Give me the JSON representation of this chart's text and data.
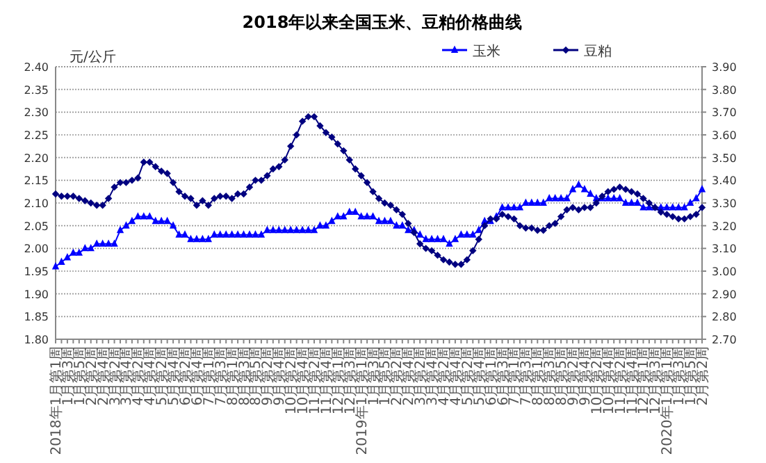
{
  "chart_data": {
    "type": "line",
    "title": "2018年以来全国玉米、豆粕价格曲线",
    "ylabel": "元/公斤",
    "categories": [
      "2018年1月第1周",
      null,
      "1月第3周",
      null,
      "1月第5周",
      null,
      "2月第2周",
      null,
      "2月第4周",
      null,
      "3月第2周",
      null,
      "3月第4周",
      null,
      "4月第2周",
      null,
      "4月第4周",
      null,
      "5月第2周",
      null,
      "5月第4周",
      null,
      "6月第2周",
      null,
      "6月第4周",
      null,
      "7月第1周",
      null,
      "7月第3周",
      null,
      "8月第1周",
      null,
      "8月第3周",
      null,
      "8月第5周",
      null,
      "9月第2周",
      null,
      "9月第4周",
      null,
      "10月第2周",
      null,
      "10月第4周",
      null,
      "11月第2周",
      null,
      "11月第4周",
      null,
      "12月第1周",
      null,
      "12月第3周",
      null,
      "2019年1月第1周",
      null,
      "1月第3周",
      null,
      "1月第5周",
      null,
      "2月第2周",
      null,
      "2月第4周",
      null,
      "3月第2周",
      null,
      "3月第4周",
      null,
      "4月第2周",
      null,
      "4月第4周",
      null,
      "5月第2周",
      null,
      "5月第4周",
      null,
      "6月第1周",
      null,
      "6月第3周",
      null,
      "7月第1周",
      null,
      "7月第3周",
      null,
      "8月第1周",
      null,
      "8月第3周",
      null,
      "8月第5周",
      null,
      "9月第2周",
      null,
      "9月第4周",
      null,
      "10月第2周",
      null,
      "10月第4周",
      null,
      "11月第2周",
      null,
      "11月第4周",
      null,
      "12月第1周",
      null,
      "12月第3周",
      null,
      "2020年1月第1周",
      null,
      "1月第3周",
      null,
      "1月第5周",
      null,
      "2月第2周"
    ],
    "series": [
      {
        "name": "玉米",
        "color": "#0000ff",
        "marker": "triangle",
        "values": [
          1.96,
          1.97,
          1.98,
          1.99,
          1.99,
          2.0,
          2.0,
          2.01,
          2.01,
          2.01,
          2.01,
          2.04,
          2.05,
          2.06,
          2.07,
          2.07,
          2.07,
          2.06,
          2.06,
          2.06,
          2.05,
          2.03,
          2.03,
          2.02,
          2.02,
          2.02,
          2.02,
          2.03,
          2.03,
          2.03,
          2.03,
          2.03,
          2.03,
          2.03,
          2.03,
          2.03,
          2.04,
          2.04,
          2.04,
          2.04,
          2.04,
          2.04,
          2.04,
          2.04,
          2.04,
          2.05,
          2.05,
          2.06,
          2.07,
          2.07,
          2.08,
          2.08,
          2.07,
          2.07,
          2.07,
          2.06,
          2.06,
          2.06,
          2.05,
          2.05,
          2.04,
          2.04,
          2.03,
          2.02,
          2.02,
          2.02,
          2.02,
          2.01,
          2.02,
          2.03,
          2.03,
          2.03,
          2.04,
          2.06,
          2.06,
          2.07,
          2.09,
          2.09,
          2.09,
          2.09,
          2.1,
          2.1,
          2.1,
          2.1,
          2.11,
          2.11,
          2.11,
          2.11,
          2.13,
          2.14,
          2.13,
          2.12,
          2.11,
          2.11,
          2.11,
          2.11,
          2.11,
          2.1,
          2.1,
          2.1,
          2.09,
          2.09,
          2.09,
          2.09,
          2.09,
          2.09,
          2.09,
          2.09,
          2.1,
          2.11,
          2.13
        ]
      },
      {
        "name": "豆粕",
        "color": "#000080",
        "marker": "diamond",
        "axis": "y2",
        "values": [
          3.34,
          3.33,
          3.33,
          3.33,
          3.32,
          3.31,
          3.3,
          3.29,
          3.29,
          3.32,
          3.37,
          3.39,
          3.39,
          3.4,
          3.41,
          3.48,
          3.48,
          3.46,
          3.44,
          3.43,
          3.39,
          3.35,
          3.33,
          3.32,
          3.29,
          3.31,
          3.29,
          3.32,
          3.33,
          3.33,
          3.32,
          3.34,
          3.34,
          3.37,
          3.4,
          3.4,
          3.42,
          3.45,
          3.46,
          3.49,
          3.55,
          3.6,
          3.66,
          3.68,
          3.68,
          3.64,
          3.61,
          3.59,
          3.56,
          3.53,
          3.49,
          3.45,
          3.42,
          3.39,
          3.35,
          3.32,
          3.3,
          3.29,
          3.27,
          3.25,
          3.21,
          3.17,
          3.12,
          3.1,
          3.09,
          3.07,
          3.05,
          3.04,
          3.03,
          3.03,
          3.05,
          3.09,
          3.14,
          3.2,
          3.23,
          3.23,
          3.25,
          3.24,
          3.23,
          3.2,
          3.19,
          3.19,
          3.18,
          3.18,
          3.2,
          3.21,
          3.24,
          3.27,
          3.28,
          3.27,
          3.28,
          3.28,
          3.3,
          3.33,
          3.35,
          3.36,
          3.37,
          3.36,
          3.35,
          3.34,
          3.32,
          3.3,
          3.28,
          3.26,
          3.25,
          3.24,
          3.23,
          3.23,
          3.24,
          3.25,
          3.28
        ]
      }
    ],
    "ylim": [
      1.8,
      2.4
    ],
    "yticks": [
      {
        "value": 1.8,
        "label": "1.80"
      },
      {
        "value": 1.85,
        "label": "1.85"
      },
      {
        "value": 1.9,
        "label": "1.90"
      },
      {
        "value": 1.95,
        "label": "1.95"
      },
      {
        "value": 2.0,
        "label": "2.00"
      },
      {
        "value": 2.05,
        "label": "2.05"
      },
      {
        "value": 2.1,
        "label": "2.10"
      },
      {
        "value": 2.15,
        "label": "2.15"
      },
      {
        "value": 2.2,
        "label": "2.20"
      },
      {
        "value": 2.25,
        "label": "2.25"
      },
      {
        "value": 2.3,
        "label": "2.30"
      },
      {
        "value": 2.35,
        "label": "2.35"
      },
      {
        "value": 2.4,
        "label": "2.40"
      }
    ],
    "y2lim": [
      2.7,
      3.9
    ],
    "y2ticks": [
      {
        "value": 2.7,
        "label": "2.70"
      },
      {
        "value": 2.8,
        "label": "2.80"
      },
      {
        "value": 2.9,
        "label": "2.90"
      },
      {
        "value": 3.0,
        "label": "3.00"
      },
      {
        "value": 3.1,
        "label": "3.10"
      },
      {
        "value": 3.2,
        "label": "3.20"
      },
      {
        "value": 3.3,
        "label": "3.30"
      },
      {
        "value": 3.4,
        "label": "3.40"
      },
      {
        "value": 3.5,
        "label": "3.50"
      },
      {
        "value": 3.6,
        "label": "3.60"
      },
      {
        "value": 3.7,
        "label": "3.70"
      },
      {
        "value": 3.8,
        "label": "3.80"
      },
      {
        "value": 3.9,
        "label": "3.90"
      }
    ],
    "grid": "y",
    "legend": "top right",
    "line_style": "solid"
  }
}
